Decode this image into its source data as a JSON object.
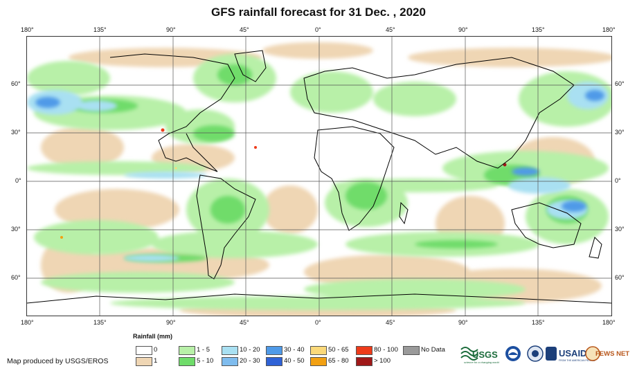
{
  "title": "GFS rainfall forecast for 31 Dec. , 2020",
  "axes": {
    "top_ticks": [
      "180°",
      "135°",
      "90°",
      "45°",
      "0°",
      "45°",
      "90°",
      "135°",
      "180°"
    ],
    "bottom_ticks": [
      "180°",
      "135°",
      "90°",
      "45°",
      "0°",
      "45°",
      "90°",
      "135°",
      "180°"
    ],
    "left_ticks": [
      "60°",
      "30°",
      "0°",
      "30°",
      "60°"
    ],
    "right_ticks": [
      "60°",
      "30°",
      "0°",
      "30°",
      "60°"
    ]
  },
  "legend": {
    "title": "Rainfall (mm)",
    "row1": [
      {
        "label": "0",
        "color": "#ffffff"
      },
      {
        "label": "1 - 5",
        "color": "#b8f0a8"
      },
      {
        "label": "10 - 20",
        "color": "#a9e0f2"
      },
      {
        "label": "30 - 40",
        "color": "#4f9ae8"
      },
      {
        "label": "50 - 65",
        "color": "#fbd97a"
      },
      {
        "label": "80 - 100",
        "color": "#ee3b1a"
      },
      {
        "label": "No Data",
        "color": "#9a9a9a"
      }
    ],
    "row2": [
      {
        "label": "1",
        "color": "#efd6b4"
      },
      {
        "label": "5 - 10",
        "color": "#6fdc6a"
      },
      {
        "label": "20 - 30",
        "color": "#7fbcee"
      },
      {
        "label": "40 - 50",
        "color": "#2f62d6"
      },
      {
        "label": "65 - 80",
        "color": "#f2a012"
      },
      {
        "label": "> 100",
        "color": "#a01818"
      }
    ]
  },
  "credit": "Map produced by USGS/EROS",
  "logos": {
    "usgs": "USGS",
    "usgs_tagline": "science for a changing world",
    "usaid": "USAID",
    "usaid_tagline": "FROM THE AMERICAN PEOPLE",
    "fewsnet": "FEWS NET"
  }
}
